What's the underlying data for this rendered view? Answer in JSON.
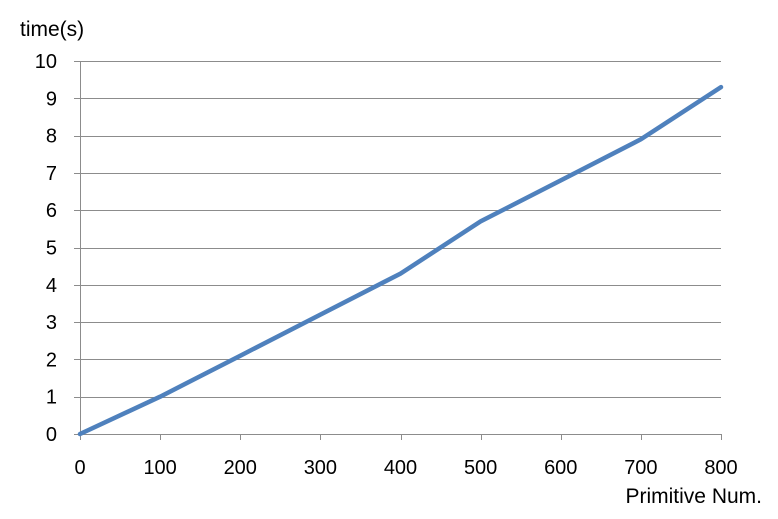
{
  "chart_data": {
    "type": "line",
    "xlabel": "Primitive Num.",
    "ylabel": "time(s)",
    "xlim": [
      0,
      800
    ],
    "ylim": [
      0,
      10
    ],
    "x_ticks": [
      "0",
      "100",
      "200",
      "300",
      "400",
      "500",
      "600",
      "700",
      "800"
    ],
    "y_ticks": [
      "0",
      "1",
      "2",
      "3",
      "4",
      "5",
      "6",
      "7",
      "8",
      "9",
      "10"
    ],
    "grid": "horizontal",
    "legend": "none",
    "series": [
      {
        "color": "#4f81bd",
        "x": [
          0,
          100,
          200,
          300,
          400,
          500,
          600,
          700,
          800
        ],
        "y": [
          0,
          1.0,
          2.1,
          3.2,
          4.3,
          5.7,
          6.8,
          7.9,
          9.3
        ]
      }
    ]
  }
}
